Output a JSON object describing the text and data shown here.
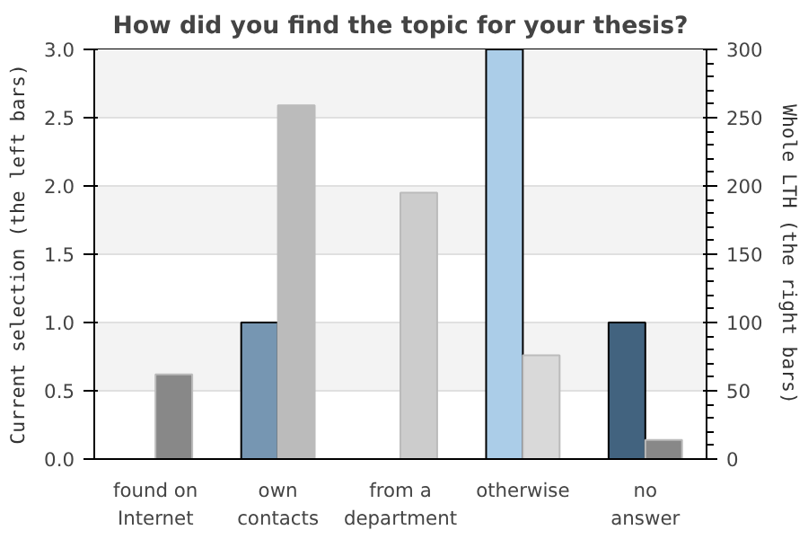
{
  "chart_data": {
    "type": "bar",
    "title": "How did you find the topic for your thesis?",
    "ylabel": "Current selection (the left bars)",
    "y2label": "Whole LTH (the right bars)",
    "categories": [
      "found on Internet",
      "own contacts",
      "from a department",
      "otherwise",
      "no answer"
    ],
    "series": [
      {
        "colors": [
          "#7696b2",
          "#7696b2",
          "#7696b2",
          "#abcde8",
          "#42637f"
        ],
        "values": [
          null,
          1,
          null,
          3,
          1
        ]
      },
      {
        "axis": "y2",
        "colors": [
          "#888888",
          "#bbbbbb",
          "#cccccc",
          "#d9d9d9",
          "#888888"
        ],
        "values": [
          62,
          259,
          195,
          76,
          14
        ]
      }
    ],
    "ylim": [
      0,
      3
    ],
    "yticks": [
      {
        "value": 0,
        "label": "0.0"
      },
      {
        "value": 0.5,
        "label": "0.5"
      },
      {
        "value": 1,
        "label": "1.0"
      },
      {
        "value": 1.5,
        "label": "1.5"
      },
      {
        "value": 2,
        "label": "2.0"
      },
      {
        "value": 2.5,
        "label": "2.5"
      },
      {
        "value": 3,
        "label": "3.0"
      }
    ],
    "y2lim": [
      0,
      300
    ],
    "y2ticks": [
      0,
      50,
      100,
      150,
      200,
      250,
      300
    ],
    "grid": "y"
  }
}
